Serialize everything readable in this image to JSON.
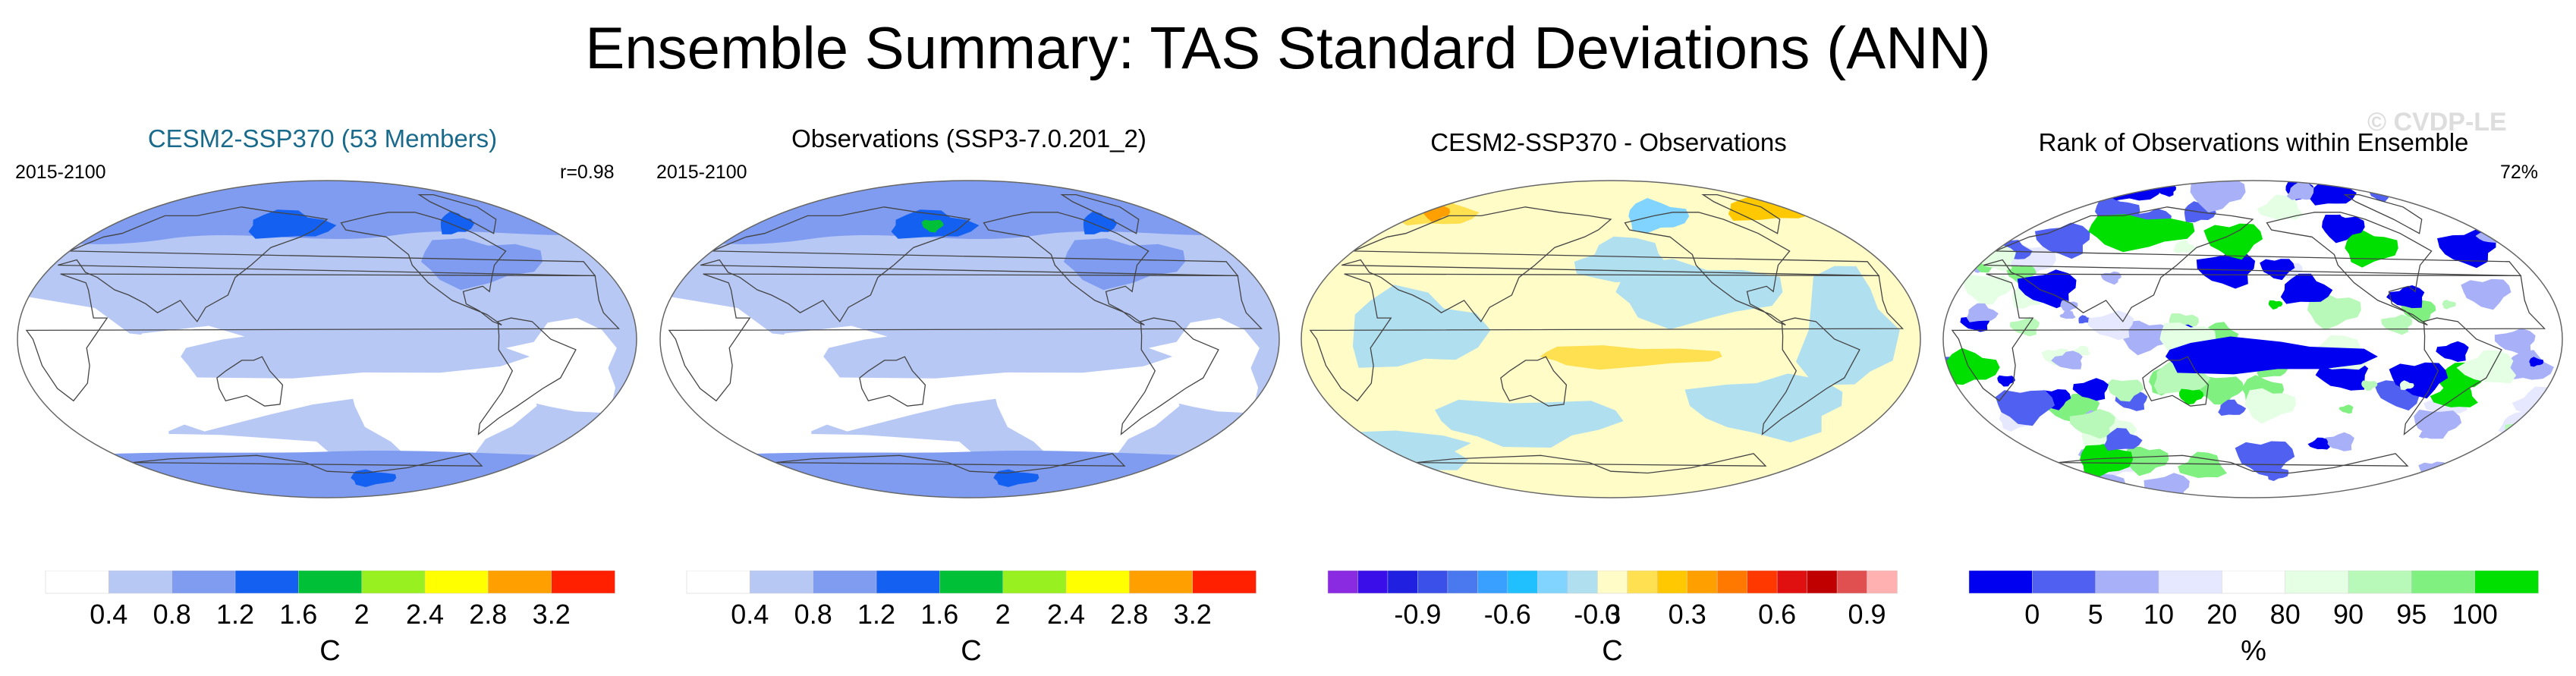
{
  "chart_data": {
    "type": "heatmap",
    "title": "Ensemble Summary: TAS Standard Deviations (ANN)",
    "watermark": "© CVDP-LE",
    "panels": [
      {
        "id": "p1",
        "title": "CESM2-SSP370 (53 Members)",
        "title_color": "#1a6a8c",
        "period": "2015-2100",
        "stat": "r=0.98",
        "unit": "C",
        "colorbar": {
          "colors": [
            "#ffffff",
            "#b7c8f5",
            "#7f9cf0",
            "#1460f0",
            "#00c038",
            "#98f020",
            "#ffff00",
            "#ffa000",
            "#ff2000"
          ],
          "ticks": [
            "0.4",
            "0.8",
            "1.2",
            "1.6",
            "2",
            "2.4",
            "2.8",
            "3.2"
          ]
        },
        "regions": [
          {
            "level": 1,
            "name": "northern-high-latitudes"
          },
          {
            "level": 1,
            "name": "southern-ocean-band"
          },
          {
            "level": 1,
            "name": "tropical-pacific"
          },
          {
            "level": 2,
            "name": "arctic"
          },
          {
            "level": 2,
            "name": "antarctica"
          },
          {
            "level": 3,
            "name": "siberia-core"
          }
        ]
      },
      {
        "id": "p2",
        "title": "Observations (SSP3-7.0.201_2)",
        "title_color": "#000000",
        "period": "2015-2100",
        "stat": "",
        "unit": "C",
        "colorbar": {
          "colors": [
            "#ffffff",
            "#b7c8f5",
            "#7f9cf0",
            "#1460f0",
            "#00c038",
            "#98f020",
            "#ffff00",
            "#ffa000",
            "#ff2000"
          ],
          "ticks": [
            "0.4",
            "0.8",
            "1.2",
            "1.6",
            "2",
            "2.4",
            "2.8",
            "3.2"
          ]
        },
        "regions": [
          {
            "level": 1,
            "name": "northern-high-latitudes"
          },
          {
            "level": 1,
            "name": "southern-ocean-band"
          },
          {
            "level": 1,
            "name": "tropical-pacific"
          },
          {
            "level": 2,
            "name": "arctic"
          },
          {
            "level": 2,
            "name": "antarctica"
          },
          {
            "level": 3,
            "name": "siberia-core"
          },
          {
            "level": 4,
            "name": "siberia-peak"
          }
        ]
      },
      {
        "id": "p3",
        "title": "CESM2-SSP370 - Observations",
        "title_color": "#000000",
        "period": "",
        "stat": "",
        "unit": "C",
        "colorbar": {
          "colors": [
            "#8a2be2",
            "#3a0ee8",
            "#2020e0",
            "#3a50e8",
            "#4a78ee",
            "#3aa0ff",
            "#20c0ff",
            "#80d4ff",
            "#b0dff0",
            "#fffcc8",
            "#ffe050",
            "#ffc800",
            "#ffa000",
            "#ff7800",
            "#ff3800",
            "#e01010",
            "#c00000",
            "#e05050",
            "#ffb0b0"
          ],
          "ticks": [
            "-0.9",
            "-0.6",
            "-0.3",
            "0",
            "0.3",
            "0.6",
            "0.9"
          ]
        },
        "regions": [
          {
            "level": 0,
            "name": "ocean-background"
          },
          {
            "level": -1,
            "name": "north-atlantic"
          },
          {
            "level": -1,
            "name": "south-pacific"
          },
          {
            "level": -1,
            "name": "southern-ocean"
          },
          {
            "level": 1,
            "name": "equatorial-pacific"
          },
          {
            "level": 1,
            "name": "arctic-siberia"
          }
        ]
      },
      {
        "id": "p4",
        "title": "Rank of Observations within Ensemble",
        "title_color": "#000000",
        "period": "",
        "stat": "72%",
        "unit": "%",
        "colorbar": {
          "colors": [
            "#0000f0",
            "#5060f0",
            "#a8b0f8",
            "#e6e8ff",
            "#ffffff",
            "#e4ffe4",
            "#b8f8b8",
            "#80f080",
            "#00e000"
          ],
          "ticks": [
            "0",
            "5",
            "10",
            "20",
            "80",
            "90",
            "95",
            "100"
          ]
        },
        "regions": [
          {
            "level": 0,
            "name": "low-rank-blue-patches"
          },
          {
            "level": 1,
            "name": "mid-rank-white"
          },
          {
            "level": 2,
            "name": "high-rank-green-patches"
          }
        ]
      }
    ]
  }
}
